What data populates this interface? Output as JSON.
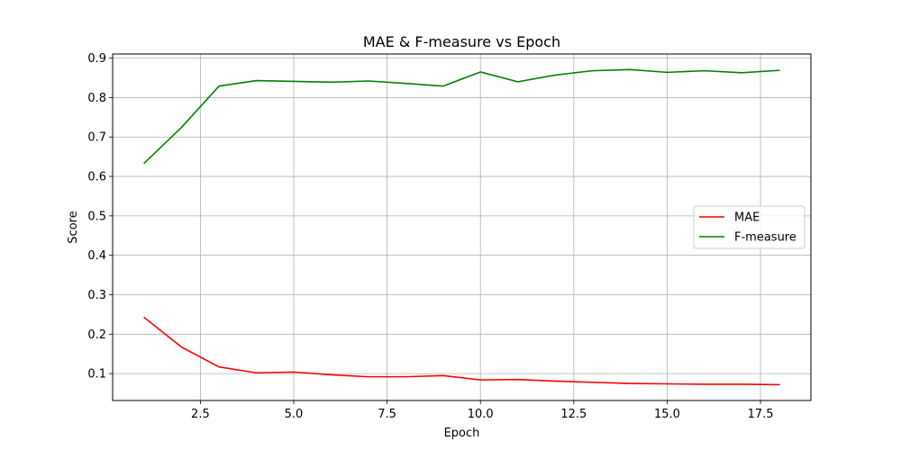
{
  "chart_data": {
    "type": "line",
    "title": "MAE & F-measure vs Epoch",
    "xlabel": "Epoch",
    "ylabel": "Score",
    "xlim": [
      0.15,
      18.85
    ],
    "ylim": [
      0.0318,
      0.9105
    ],
    "xticks": [
      2.5,
      5.0,
      7.5,
      10.0,
      12.5,
      15.0,
      17.5
    ],
    "xtick_labels": [
      "2.5",
      "5.0",
      "7.5",
      "10.0",
      "12.5",
      "15.0",
      "17.5"
    ],
    "yticks": [
      0.1,
      0.2,
      0.3,
      0.4,
      0.5,
      0.6,
      0.7,
      0.8,
      0.9
    ],
    "ytick_labels": [
      "0.1",
      "0.2",
      "0.3",
      "0.4",
      "0.5",
      "0.6",
      "0.7",
      "0.8",
      "0.9"
    ],
    "grid": true,
    "legend_position": "center-right",
    "x": [
      1,
      2,
      3,
      4,
      5,
      6,
      7,
      8,
      9,
      10,
      11,
      12,
      13,
      14,
      15,
      16,
      17,
      18
    ],
    "series": [
      {
        "name": "MAE",
        "color": "#ff0000",
        "values": [
          0.242,
          0.167,
          0.117,
          0.102,
          0.104,
          0.097,
          0.092,
          0.092,
          0.095,
          0.084,
          0.085,
          0.081,
          0.078,
          0.075,
          0.074,
          0.073,
          0.073,
          0.072
        ]
      },
      {
        "name": "F-measure",
        "color": "#008000",
        "values": [
          0.634,
          0.725,
          0.829,
          0.843,
          0.841,
          0.839,
          0.842,
          0.836,
          0.829,
          0.865,
          0.84,
          0.857,
          0.868,
          0.871,
          0.864,
          0.868,
          0.863,
          0.869
        ]
      }
    ]
  }
}
